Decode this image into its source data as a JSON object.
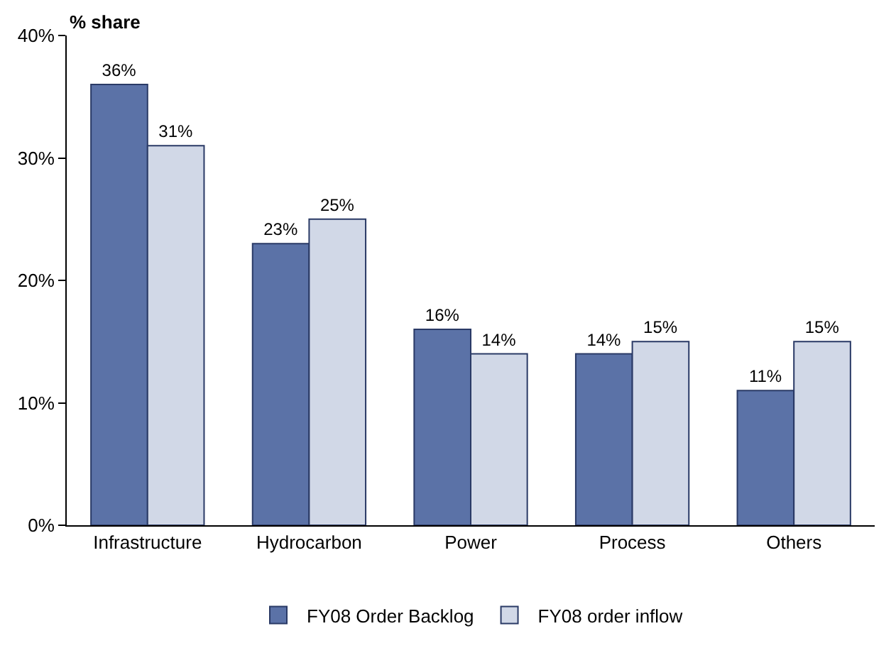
{
  "chart_data": {
    "type": "bar",
    "ylabel": "% share",
    "categories": [
      "Infrastructure",
      "Hydrocarbon",
      "Power",
      "Process",
      "Others"
    ],
    "series": [
      {
        "name": "FY08 Order Backlog",
        "color": "#5b72a7",
        "values": [
          36,
          23,
          16,
          14,
          11
        ],
        "value_labels": [
          "36%",
          "23%",
          "16%",
          "14%",
          "11%"
        ]
      },
      {
        "name": "FY08 order inflow",
        "color": "#d1d8e7",
        "values": [
          31,
          25,
          14,
          15,
          15
        ],
        "value_labels": [
          "31%",
          "25%",
          "14%",
          "15%",
          "15%"
        ]
      }
    ],
    "ylim": [
      0,
      40
    ],
    "yticks": [
      {
        "value": 0,
        "label": "0%"
      },
      {
        "value": 10,
        "label": "10%"
      },
      {
        "value": 20,
        "label": "20%"
      },
      {
        "value": 30,
        "label": "30%"
      },
      {
        "value": 40,
        "label": "40%"
      }
    ],
    "legend": "bottom"
  }
}
